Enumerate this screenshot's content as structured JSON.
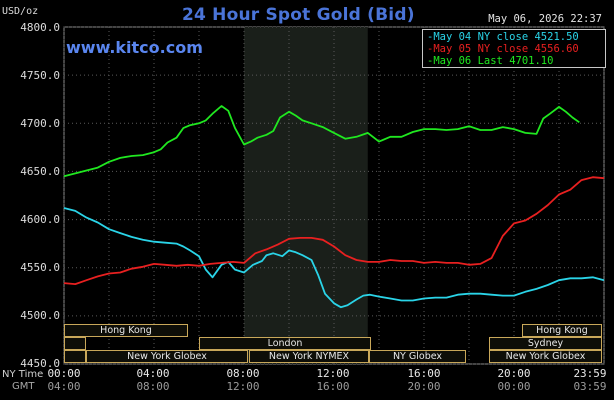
{
  "header": {
    "title": "24 Hour Spot Gold (Bid)",
    "website": "www.kitco.com",
    "unit": "USD/oz",
    "datetime": "May 06, 2026 22:37"
  },
  "legend": [
    {
      "label": "May 04 NY close",
      "value": "4521.50",
      "color": "#2ad4e8"
    },
    {
      "label": "May 05 NY close",
      "value": "4556.60",
      "color": "#e82020"
    },
    {
      "label": "May 06 Last",
      "value": "4701.10",
      "color": "#20e820"
    }
  ],
  "time_axis": {
    "ny_time_label": "NY Time",
    "gmt_label": "GMT",
    "ny_ticks": [
      "00:00",
      "04:00",
      "08:00",
      "12:00",
      "16:00",
      "20:00",
      "23:59"
    ],
    "gmt_ticks": [
      "04:00",
      "08:00",
      "12:00",
      "16:00",
      "20:00",
      "00:00",
      "03:59"
    ]
  },
  "sessions": {
    "row1": [
      "Hong Kong",
      "Hong Kong"
    ],
    "row2": [
      "London",
      "Sydney"
    ],
    "row3": [
      "New York Globex",
      "New York NYMEX",
      "NY Globex",
      "New York Globex"
    ]
  },
  "chart_data": {
    "type": "line",
    "title": "24 Hour Spot Gold (Bid)",
    "ylabel": "USD/oz",
    "ylim": [
      4450,
      4800
    ],
    "yticks": [
      "4800.0",
      "4750.0",
      "4700.0",
      "4650.0",
      "4600.0",
      "4550.0",
      "4500.0",
      "4450.0"
    ],
    "xlim_hours": [
      0,
      24
    ],
    "grid": true,
    "series": [
      {
        "name": "May 04",
        "color": "#2ad4e8",
        "x": [
          0,
          0.5,
          1,
          1.5,
          2,
          2.5,
          3,
          3.5,
          4,
          4.5,
          5,
          5.3,
          5.6,
          6,
          6.3,
          6.6,
          7,
          7.3,
          7.6,
          8,
          8.4,
          8.8,
          9,
          9.3,
          9.7,
          10,
          10.3,
          10.6,
          11,
          11.3,
          11.6,
          12,
          12.3,
          12.6,
          13,
          13.3,
          13.6,
          14,
          14.5,
          15,
          15.5,
          16,
          16.5,
          17,
          17.5,
          18,
          18.5,
          19,
          19.5,
          20,
          20.5,
          21,
          21.5,
          22,
          22.5,
          23,
          23.5,
          24
        ],
        "values": [
          4612,
          4609,
          4602,
          4597,
          4590,
          4586,
          4582,
          4579,
          4577,
          4576,
          4575,
          4572,
          4568,
          4562,
          4548,
          4540,
          4553,
          4556,
          4548,
          4545,
          4553,
          4557,
          4563,
          4565,
          4562,
          4568,
          4566,
          4563,
          4558,
          4542,
          4523,
          4513,
          4509,
          4511,
          4517,
          4521,
          4522,
          4520,
          4518,
          4516,
          4516,
          4518,
          4519,
          4519,
          4522,
          4523,
          4523,
          4522,
          4521,
          4521,
          4525,
          4528,
          4532,
          4537,
          4539,
          4539,
          4540,
          4537
        ]
      },
      {
        "name": "May 05",
        "color": "#e82020",
        "x": [
          0,
          0.5,
          1,
          1.5,
          2,
          2.5,
          3,
          3.5,
          4,
          4.5,
          5,
          5.5,
          6,
          6.5,
          7,
          7.5,
          8,
          8.5,
          9,
          9.5,
          10,
          10.5,
          11,
          11.5,
          12,
          12.5,
          13,
          13.5,
          14,
          14.5,
          15,
          15.5,
          16,
          16.5,
          17,
          17.5,
          18,
          18.5,
          19,
          19.5,
          20,
          20.5,
          21,
          21.5,
          22,
          22.5,
          23,
          23.5,
          24
        ],
        "values": [
          4534,
          4533,
          4537,
          4541,
          4544,
          4545,
          4549,
          4551,
          4554,
          4553,
          4552,
          4553,
          4552,
          4554,
          4555,
          4556,
          4555,
          4565,
          4569,
          4574,
          4580,
          4581,
          4581,
          4579,
          4572,
          4563,
          4558,
          4556,
          4556,
          4558,
          4557,
          4557,
          4555,
          4556,
          4555,
          4555,
          4553,
          4554,
          4560,
          4583,
          4596,
          4599,
          4606,
          4615,
          4626,
          4631,
          4641,
          4644,
          4643
        ]
      },
      {
        "name": "May 06",
        "color": "#20e820",
        "x": [
          0,
          0.5,
          1,
          1.5,
          2,
          2.5,
          3,
          3.5,
          4,
          4.3,
          4.6,
          5,
          5.3,
          5.6,
          6,
          6.3,
          6.6,
          7,
          7.3,
          7.6,
          8,
          8.3,
          8.6,
          9,
          9.3,
          9.6,
          10,
          10.3,
          10.6,
          11,
          11.5,
          12,
          12.5,
          13,
          13.5,
          14,
          14.5,
          15,
          15.5,
          16,
          16.5,
          17,
          17.5,
          18,
          18.5,
          19,
          19.5,
          20,
          20.5,
          21,
          21.3,
          21.6,
          22,
          22.3,
          22.6,
          22.9
        ],
        "values": [
          4645,
          4648,
          4651,
          4654,
          4660,
          4664,
          4666,
          4667,
          4670,
          4673,
          4680,
          4685,
          4695,
          4698,
          4700,
          4703,
          4710,
          4718,
          4713,
          4695,
          4678,
          4681,
          4685,
          4688,
          4692,
          4706,
          4712,
          4708,
          4703,
          4700,
          4696,
          4690,
          4684,
          4686,
          4690,
          4681,
          4686,
          4686,
          4691,
          4694,
          4694,
          4693,
          4694,
          4697,
          4693,
          4693,
          4696,
          4694,
          4690,
          4689,
          4705,
          4710,
          4717,
          4712,
          4706,
          4701
        ]
      }
    ]
  }
}
